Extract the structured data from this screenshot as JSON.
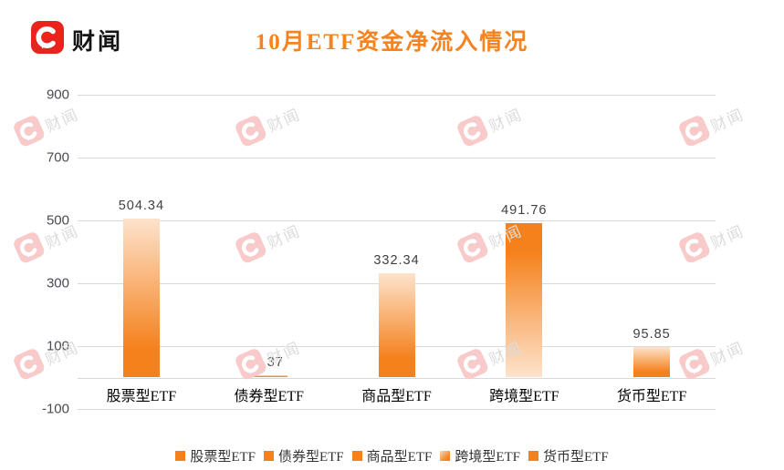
{
  "header": {
    "brand": "财闻",
    "title": "10月ETF资金净流入情况"
  },
  "watermark": {
    "label": "财闻"
  },
  "colors": {
    "title_orange": "#f5831f",
    "bar_orange": "#f5811c",
    "bar_light": "#fde3cc",
    "brand_red": "#e9241d",
    "axis_text": "#4a4a52",
    "gridline": "#d9d9d9",
    "data_label": "#404040",
    "watermark_icon": "#f8caca",
    "watermark_text": "#dcdcdc"
  },
  "chart_data": {
    "type": "bar",
    "title": "10月ETF资金净流入情况",
    "categories": [
      "股票型ETF",
      "债券型ETF",
      "商品型ETF",
      "跨境型ETF",
      "货币型ETF"
    ],
    "values": [
      504.34,
      6.37,
      332.34,
      491.76,
      95.85
    ],
    "data_labels": [
      "504.34",
      "6.37",
      "332.34",
      "491.76",
      "95.85"
    ],
    "xlabel": "",
    "ylabel": "",
    "ylim": [
      -100,
      900
    ],
    "y_ticks": [
      900,
      700,
      500,
      300,
      100,
      -100
    ],
    "grid": true,
    "legend_position": "bottom",
    "legend_entries": [
      "股票型ETF",
      "债券型ETF",
      "商品型ETF",
      "跨境型ETF",
      "货币型ETF"
    ],
    "bar_gradient_reversed": [
      false,
      false,
      false,
      true,
      false
    ]
  }
}
